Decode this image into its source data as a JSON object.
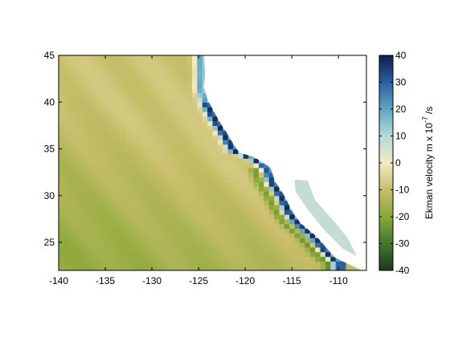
{
  "chart_data": {
    "type": "heatmap",
    "title": "",
    "xlabel": "",
    "ylabel": "",
    "xlim": [
      -140,
      -107
    ],
    "ylim": [
      22,
      45
    ],
    "xticks": [
      -140,
      -135,
      -130,
      -125,
      -120,
      -115,
      -110
    ],
    "yticks": [
      25,
      30,
      35,
      40,
      45
    ],
    "grid": false,
    "colorbar": {
      "label_main": "Ekman velocity m x 10",
      "label_exp": "-7",
      "label_unit": "/s",
      "range": [
        -40,
        40
      ],
      "ticks": [
        -40,
        -30,
        -20,
        -10,
        0,
        10,
        20,
        30,
        40
      ],
      "colormap": [
        {
          "v": -40,
          "color": "#1e3a1e"
        },
        {
          "v": -30,
          "color": "#3f7a2c"
        },
        {
          "v": -20,
          "color": "#8aa838"
        },
        {
          "v": -10,
          "color": "#c8be6a"
        },
        {
          "v": 0,
          "color": "#f2ebc4"
        },
        {
          "v": 10,
          "color": "#b7dada"
        },
        {
          "v": 20,
          "color": "#5fa6c2"
        },
        {
          "v": 30,
          "color": "#2a5fa4"
        },
        {
          "v": 40,
          "color": "#0f1e4a"
        }
      ]
    },
    "coastline_lon_lat": [
      [
        -124.4,
        45.0
      ],
      [
        -124.3,
        43.0
      ],
      [
        -124.4,
        41.5
      ],
      [
        -124.0,
        40.2
      ],
      [
        -122.8,
        38.0
      ],
      [
        -121.9,
        36.6
      ],
      [
        -121.2,
        35.4
      ],
      [
        -120.6,
        34.6
      ],
      [
        -119.0,
        34.1
      ],
      [
        -117.3,
        33.0
      ],
      [
        -116.8,
        31.5
      ],
      [
        -115.8,
        30.0
      ],
      [
        -114.9,
        28.2
      ],
      [
        -114.0,
        27.0
      ],
      [
        -112.3,
        25.6
      ],
      [
        -110.4,
        23.4
      ],
      [
        -109.4,
        22.9
      ]
    ],
    "gulf_outline_lon_lat": [
      [
        -114.7,
        31.7
      ],
      [
        -113.3,
        31.6
      ],
      [
        -112.5,
        29.5
      ],
      [
        -110.6,
        27.4
      ],
      [
        -109.1,
        25.6
      ],
      [
        -108.0,
        23.5
      ],
      [
        -107.0,
        23.0
      ],
      [
        -109.5,
        24.3
      ],
      [
        -111.5,
        26.3
      ],
      [
        -113.2,
        28.4
      ],
      [
        -114.6,
        30.4
      ]
    ],
    "field_features": {
      "background_value": -9,
      "southwest_value": -20,
      "coastal_band_peak": 38,
      "coastal_band_width_deg": 1.2,
      "inner_negative_band": -22,
      "baja_tip_value": 20
    }
  }
}
